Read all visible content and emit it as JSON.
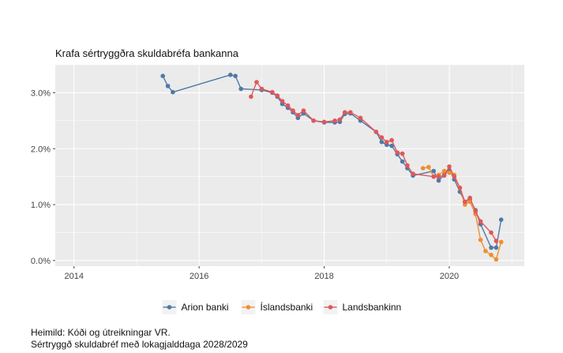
{
  "chart_data": {
    "type": "line",
    "title": "Krafa sértryggðra skuldabréfa bankanna",
    "xlabel": "",
    "ylabel": "",
    "x_ticks": [
      "2014",
      "2016",
      "2018",
      "2020"
    ],
    "y_ticks": [
      "0.0%",
      "1.0%",
      "2.0%",
      "3.0%"
    ],
    "xlim": [
      2013.7,
      2021.2
    ],
    "ylim": [
      -0.1,
      3.5
    ],
    "grid": true,
    "legend_position": "bottom",
    "series": [
      {
        "name": "Arion banki",
        "color": "#4e79a7",
        "points": [
          [
            2015.42,
            3.3
          ],
          [
            2015.5,
            3.12
          ],
          [
            2015.58,
            3.01
          ],
          [
            2016.5,
            3.32
          ],
          [
            2016.58,
            3.3
          ],
          [
            2016.67,
            3.07
          ],
          [
            2017.0,
            3.05
          ],
          [
            2017.17,
            3.0
          ],
          [
            2017.25,
            2.93
          ],
          [
            2017.33,
            2.8
          ],
          [
            2017.42,
            2.73
          ],
          [
            2017.5,
            2.65
          ],
          [
            2017.58,
            2.55
          ],
          [
            2017.67,
            2.63
          ],
          [
            2017.83,
            2.5
          ],
          [
            2018.0,
            2.47
          ],
          [
            2018.17,
            2.47
          ],
          [
            2018.25,
            2.48
          ],
          [
            2018.33,
            2.62
          ],
          [
            2018.42,
            2.63
          ],
          [
            2018.58,
            2.5
          ],
          [
            2018.83,
            2.3
          ],
          [
            2018.92,
            2.12
          ],
          [
            2019.0,
            2.07
          ],
          [
            2019.08,
            2.05
          ],
          [
            2019.17,
            1.9
          ],
          [
            2019.25,
            1.77
          ],
          [
            2019.33,
            1.65
          ],
          [
            2019.42,
            1.52
          ],
          [
            2019.75,
            1.6
          ],
          [
            2019.83,
            1.43
          ],
          [
            2019.92,
            1.53
          ],
          [
            2020.0,
            1.62
          ],
          [
            2020.08,
            1.45
          ],
          [
            2020.17,
            1.23
          ],
          [
            2020.25,
            1.05
          ],
          [
            2020.33,
            1.1
          ],
          [
            2020.42,
            0.9
          ],
          [
            2020.5,
            0.65
          ],
          [
            2020.67,
            0.23
          ],
          [
            2020.75,
            0.23
          ],
          [
            2020.83,
            0.73
          ]
        ]
      },
      {
        "name": "Íslandsbanki",
        "color": "#f28e2b",
        "points": [
          [
            2019.58,
            1.65
          ],
          [
            2019.67,
            1.67
          ],
          [
            2019.75,
            1.5
          ],
          [
            2019.83,
            1.53
          ],
          [
            2019.92,
            1.6
          ],
          [
            2020.0,
            1.57
          ],
          [
            2020.08,
            1.53
          ],
          [
            2020.17,
            1.3
          ],
          [
            2020.25,
            1.0
          ],
          [
            2020.33,
            1.05
          ],
          [
            2020.42,
            0.83
          ],
          [
            2020.5,
            0.37
          ],
          [
            2020.58,
            0.17
          ],
          [
            2020.67,
            0.1
          ],
          [
            2020.75,
            0.02
          ],
          [
            2020.83,
            0.33
          ]
        ]
      },
      {
        "name": "Landsbankinn",
        "color": "#e15759",
        "points": [
          [
            2016.83,
            2.93
          ],
          [
            2016.92,
            3.19
          ],
          [
            2017.0,
            3.07
          ],
          [
            2017.17,
            3.01
          ],
          [
            2017.25,
            2.95
          ],
          [
            2017.33,
            2.85
          ],
          [
            2017.42,
            2.77
          ],
          [
            2017.5,
            2.68
          ],
          [
            2017.58,
            2.6
          ],
          [
            2017.67,
            2.68
          ],
          [
            2017.83,
            2.5
          ],
          [
            2018.0,
            2.48
          ],
          [
            2018.17,
            2.5
          ],
          [
            2018.25,
            2.52
          ],
          [
            2018.33,
            2.65
          ],
          [
            2018.42,
            2.65
          ],
          [
            2018.58,
            2.55
          ],
          [
            2018.83,
            2.3
          ],
          [
            2018.92,
            2.2
          ],
          [
            2019.0,
            2.12
          ],
          [
            2019.08,
            2.15
          ],
          [
            2019.17,
            1.93
          ],
          [
            2019.25,
            1.91
          ],
          [
            2019.33,
            1.7
          ],
          [
            2019.42,
            1.55
          ],
          [
            2019.75,
            1.5
          ],
          [
            2019.83,
            1.5
          ],
          [
            2019.92,
            1.52
          ],
          [
            2020.0,
            1.68
          ],
          [
            2020.08,
            1.5
          ],
          [
            2020.17,
            1.3
          ],
          [
            2020.25,
            1.05
          ],
          [
            2020.33,
            1.12
          ],
          [
            2020.42,
            0.88
          ],
          [
            2020.5,
            0.7
          ],
          [
            2020.67,
            0.5
          ],
          [
            2020.75,
            0.35
          ]
        ]
      }
    ]
  },
  "footnotes": {
    "source": "Heimild: Kóði og útreikningar VR.",
    "note": "Sértryggð skuldabréf með lokagjalddaga 2028/2029"
  }
}
